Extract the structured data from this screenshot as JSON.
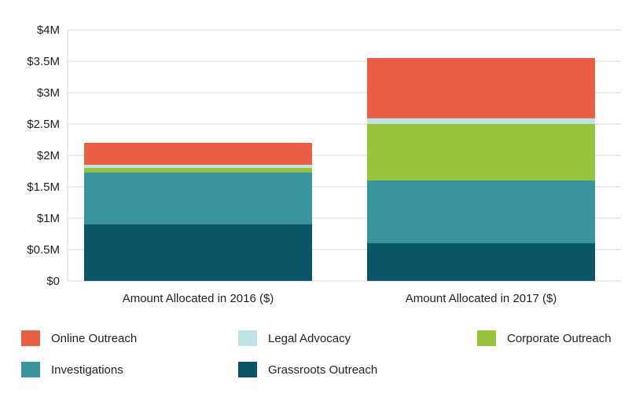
{
  "chart_data": {
    "type": "bar",
    "stacked": true,
    "categories": [
      "Amount Allocated in 2016 ($)",
      "Amount Allocated in 2017 ($)"
    ],
    "series": [
      {
        "name": "Grassroots Outreach",
        "color": "#0a5566",
        "values": [
          0.9,
          0.6
        ]
      },
      {
        "name": "Investigations",
        "color": "#3a949e",
        "values": [
          0.83,
          1.0
        ]
      },
      {
        "name": "Corporate Outreach",
        "color": "#98c33d",
        "values": [
          0.07,
          0.9
        ]
      },
      {
        "name": "Legal Advocacy",
        "color": "#bfe3e6",
        "values": [
          0.05,
          0.09
        ]
      },
      {
        "name": "Online Outreach",
        "color": "#e85d44",
        "values": [
          0.35,
          0.96
        ]
      }
    ],
    "yticks": [
      "$0",
      "$0.5M",
      "$1M",
      "$1.5M",
      "$2M",
      "$2.5M",
      "$3M",
      "$3.5M",
      "$4M"
    ],
    "ylim": [
      0,
      4
    ],
    "ylabel": "",
    "xlabel": "",
    "grid": true,
    "legend_position": "bottom"
  },
  "legend": [
    {
      "label": "Online Outreach",
      "color": "#e85d44"
    },
    {
      "label": "Legal Advocacy",
      "color": "#bfe3e6"
    },
    {
      "label": "Corporate Outreach",
      "color": "#98c33d"
    },
    {
      "label": "Investigations",
      "color": "#3a949e"
    },
    {
      "label": "Grassroots Outreach",
      "color": "#0a5566"
    }
  ]
}
